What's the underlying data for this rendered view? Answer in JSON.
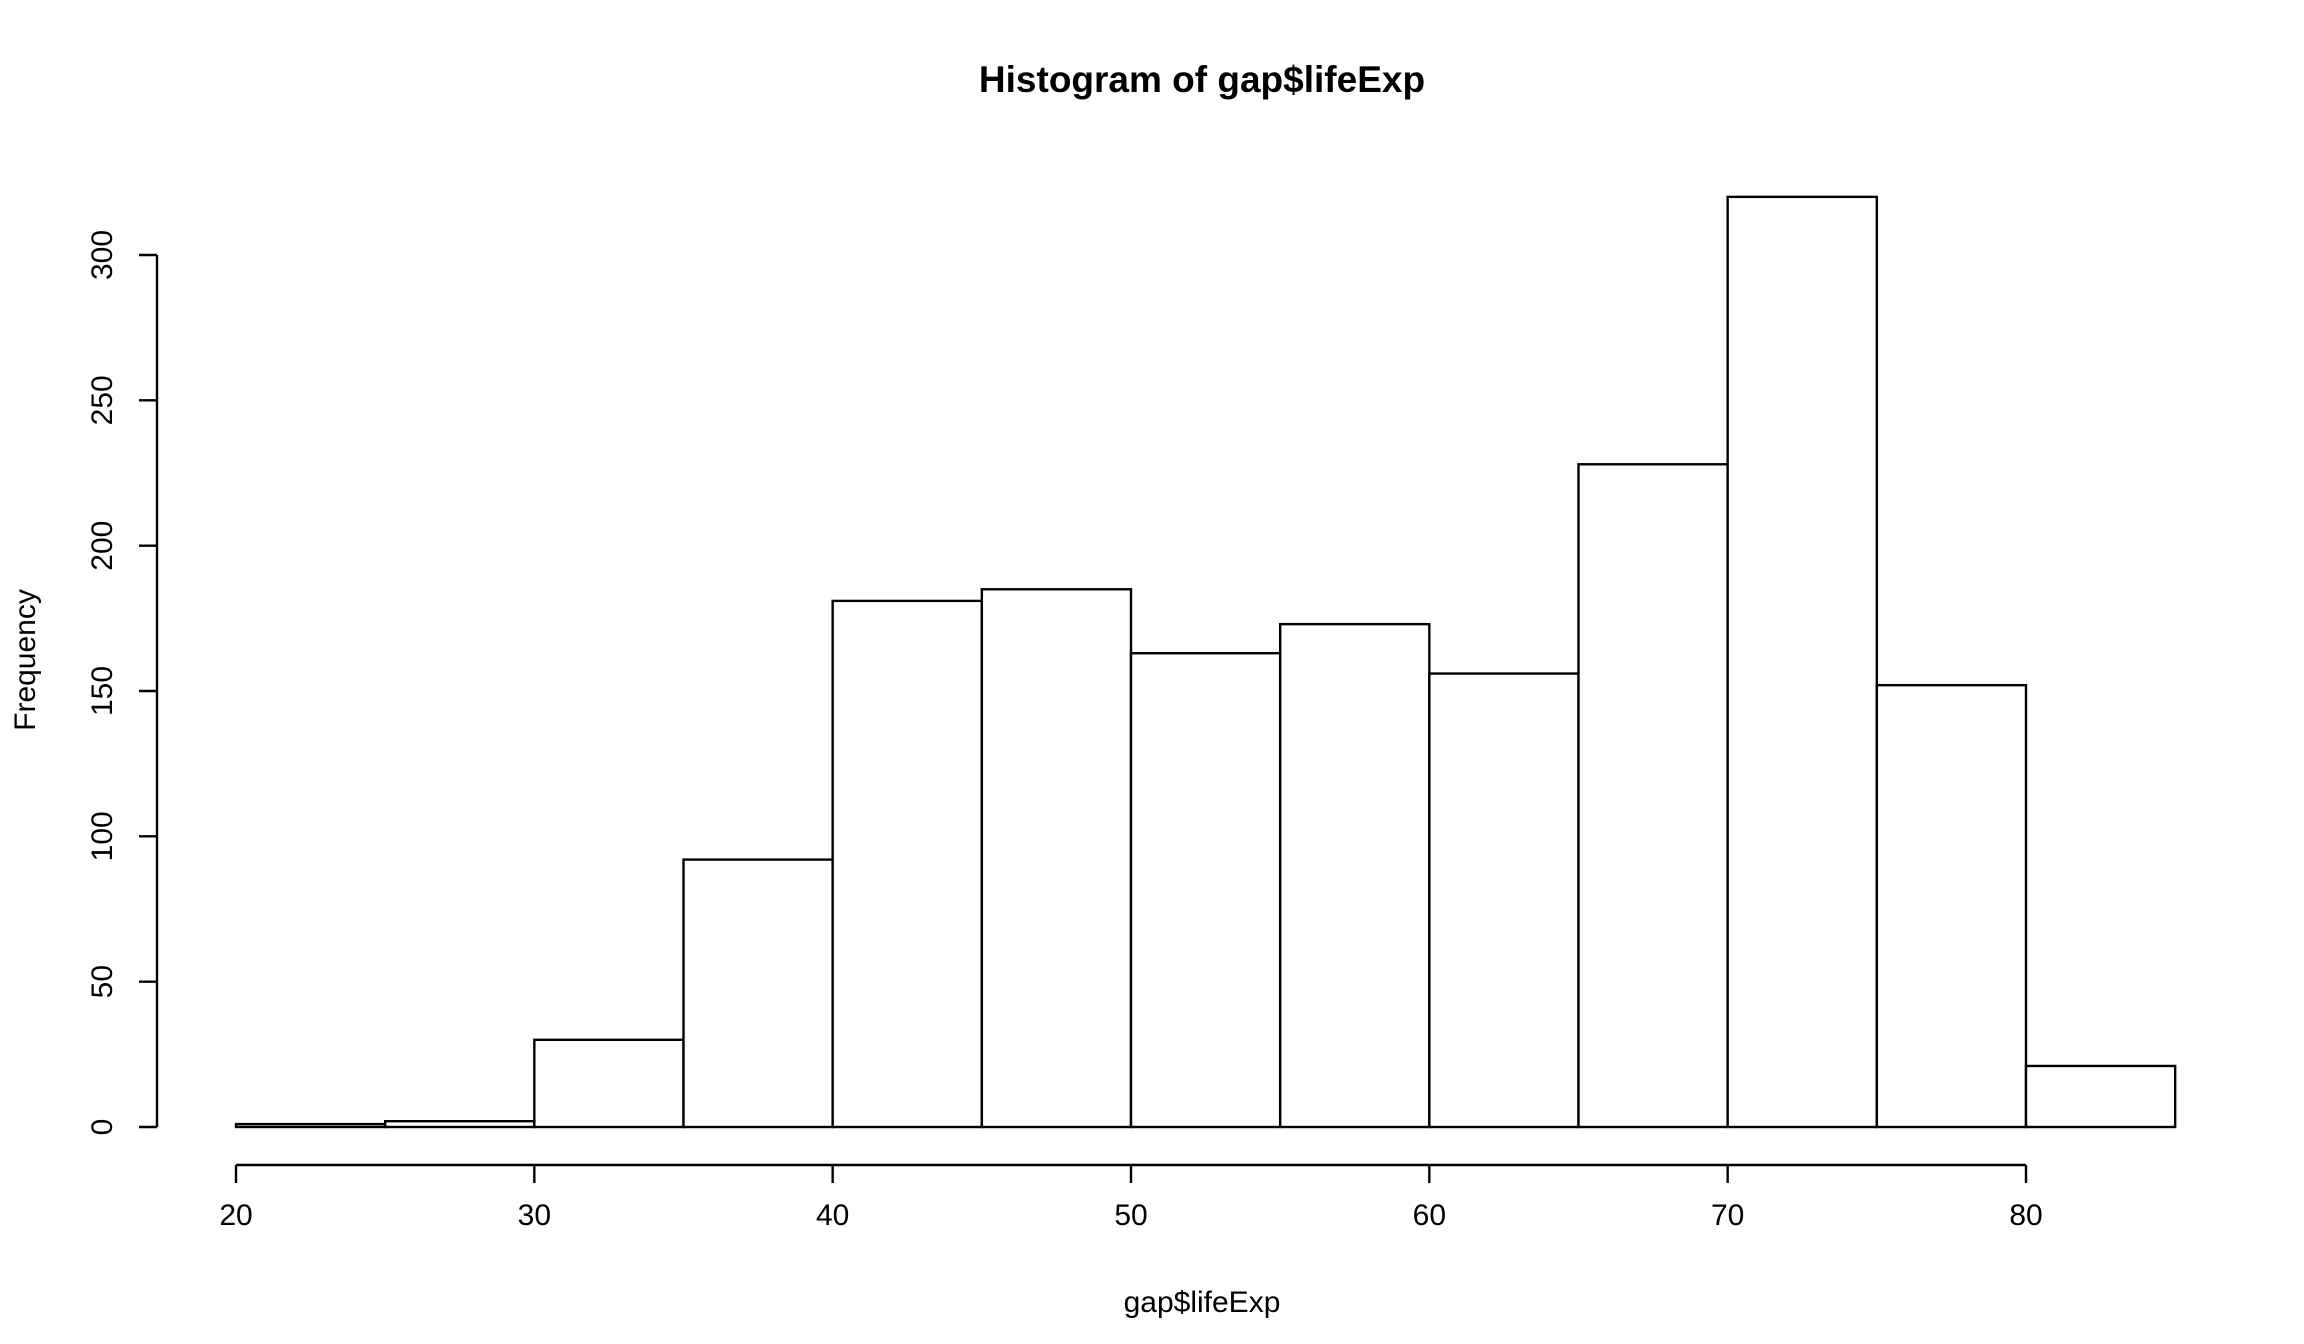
{
  "chart_data": {
    "type": "bar",
    "title": "Histogram of gap$lifeExp",
    "xlabel": "gap$lifeExp",
    "ylabel": "Frequency",
    "bins": [
      {
        "from": 20,
        "to": 25,
        "count": 1
      },
      {
        "from": 25,
        "to": 30,
        "count": 2
      },
      {
        "from": 30,
        "to": 35,
        "count": 30
      },
      {
        "from": 35,
        "to": 40,
        "count": 92
      },
      {
        "from": 40,
        "to": 45,
        "count": 181
      },
      {
        "from": 45,
        "to": 50,
        "count": 185
      },
      {
        "from": 50,
        "to": 55,
        "count": 163
      },
      {
        "from": 55,
        "to": 60,
        "count": 173
      },
      {
        "from": 60,
        "to": 65,
        "count": 156
      },
      {
        "from": 65,
        "to": 70,
        "count": 228
      },
      {
        "from": 70,
        "to": 75,
        "count": 320
      },
      {
        "from": 75,
        "to": 80,
        "count": 152
      },
      {
        "from": 80,
        "to": 85,
        "count": 21
      }
    ],
    "x_ticks": [
      20,
      30,
      40,
      50,
      60,
      70,
      80
    ],
    "y_ticks": [
      0,
      50,
      100,
      150,
      200,
      250,
      300
    ],
    "xlim": [
      20,
      85
    ],
    "ylim": [
      0,
      320
    ],
    "grid": false,
    "legend": "none"
  },
  "colors": {
    "bar_fill": "#ffffff",
    "bar_stroke": "#000000",
    "background": "#ffffff"
  }
}
